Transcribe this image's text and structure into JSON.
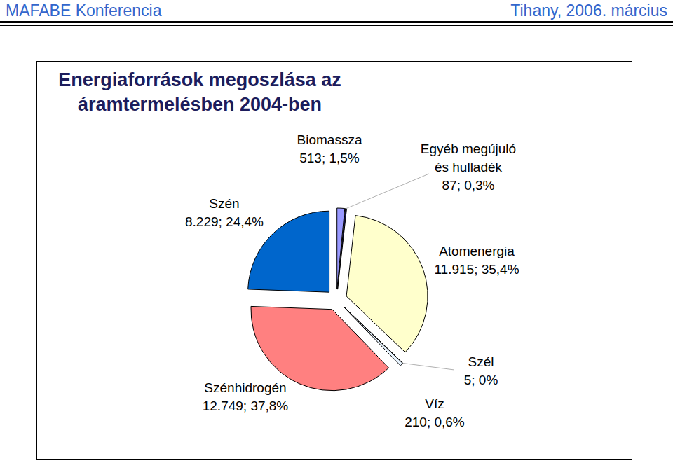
{
  "header": {
    "left": "MAFABE Konferencia",
    "right": "Tihany, 2006. március"
  },
  "chart_data": {
    "type": "pie",
    "title": "Energiaforrások megoszlása az áramtermelésben 2004-ben",
    "categories": [
      "Biomassza",
      "Egyéb megújuló és hulladék",
      "Atomenergia",
      "Szél",
      "Víz",
      "Szénhidrogén",
      "Szén"
    ],
    "values": [
      513,
      87,
      11915,
      5,
      210,
      12749,
      8229
    ],
    "value_labels": [
      "513; 1,5%",
      "87; 0,3%",
      "11.915; 35,4%",
      "5; 0%",
      "210; 0,6%",
      "12.749; 37,8%",
      "8.229; 24,4%"
    ],
    "colors": [
      "#9999ff",
      "#1a1a66",
      "#ffffcc",
      "#ccffff",
      "#e8f4ff",
      "#ff8080",
      "#0066cc"
    ],
    "data_labels": true
  }
}
